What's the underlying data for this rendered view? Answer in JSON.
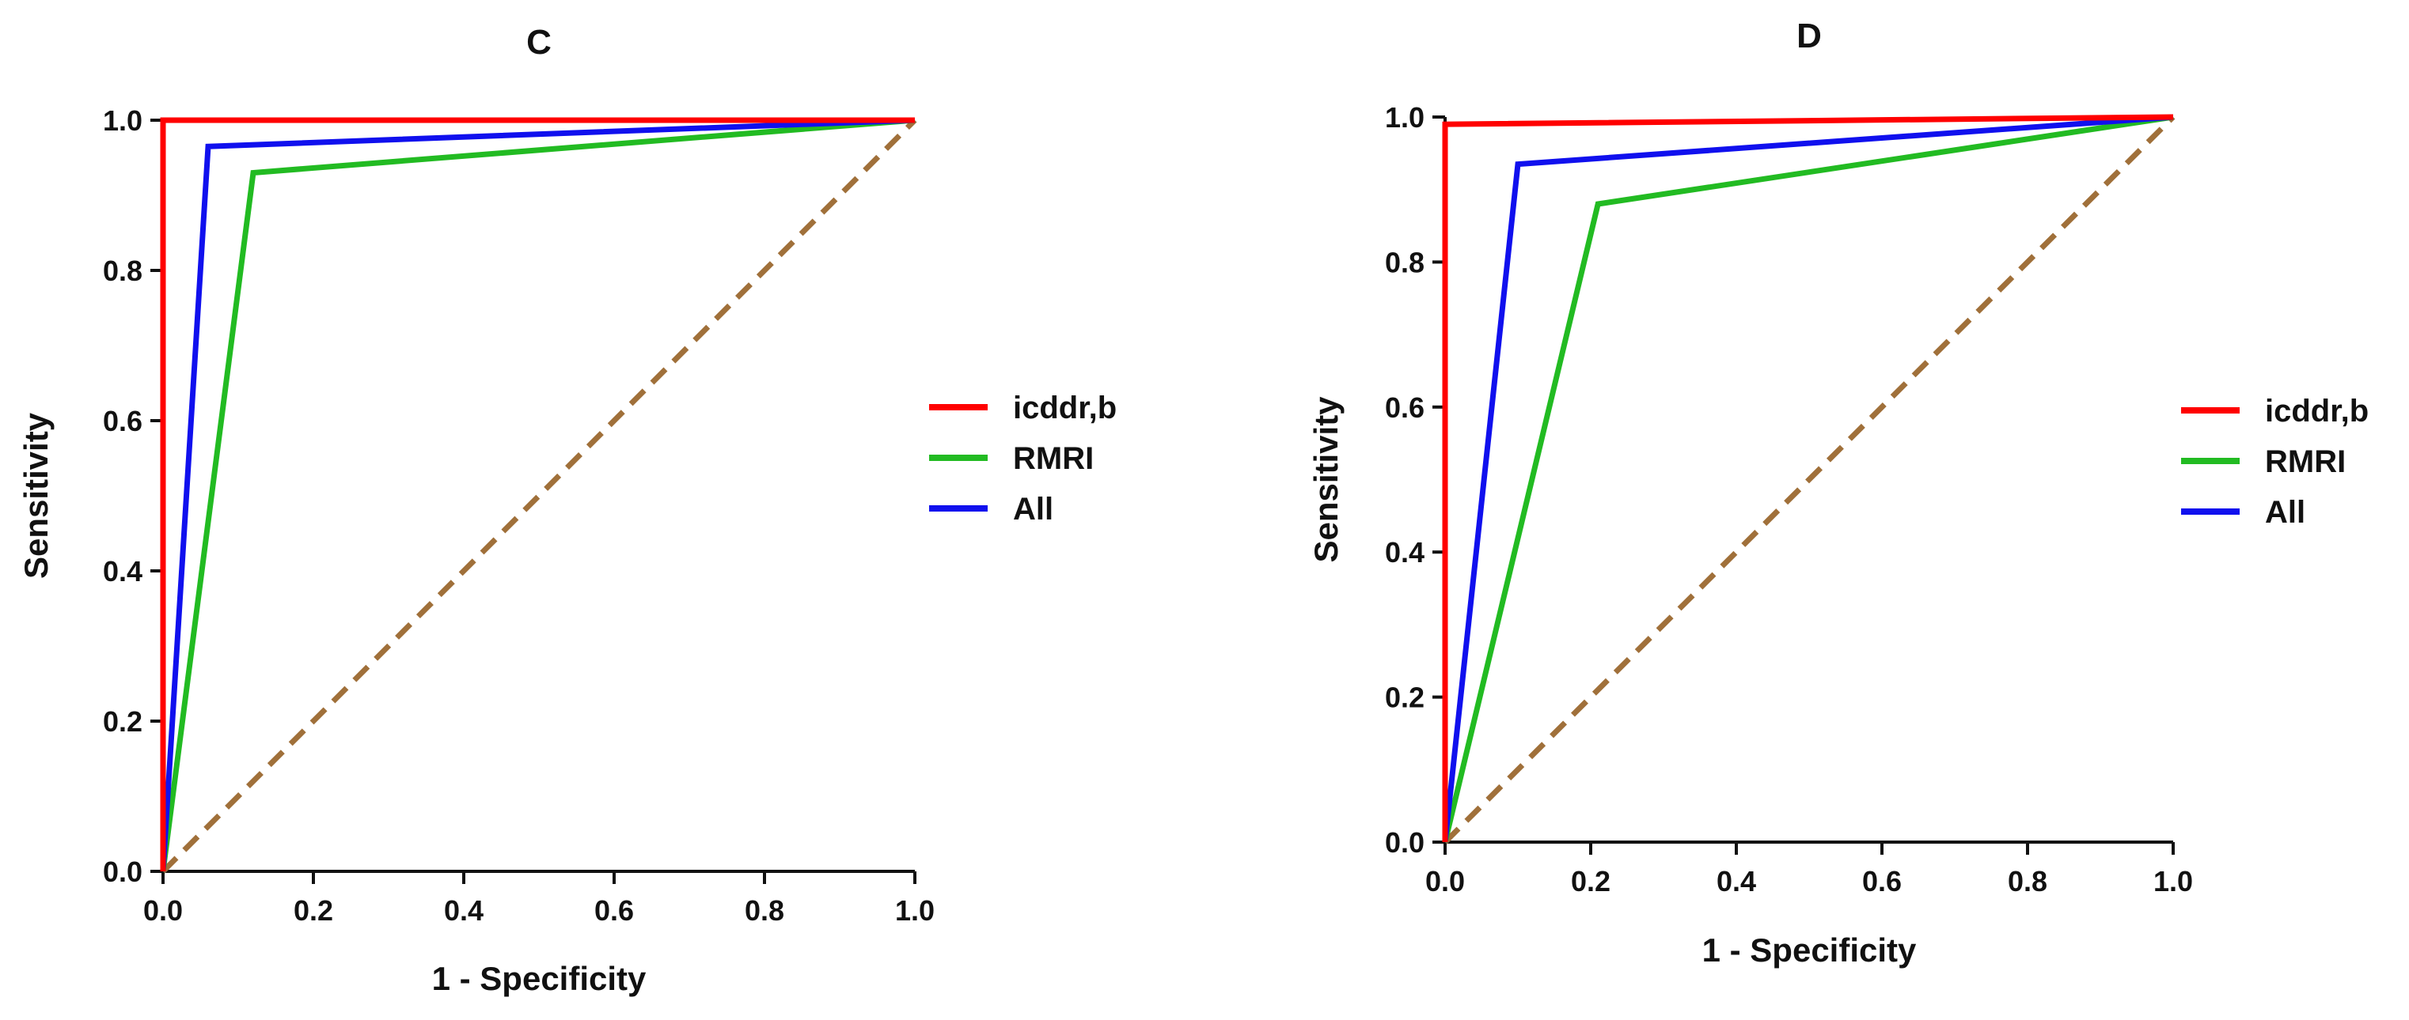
{
  "chart_data": [
    {
      "type": "line",
      "title": "C",
      "xlabel": "1 - Specificity",
      "ylabel": "Sensitivity",
      "xlim": [
        0,
        1
      ],
      "ylim": [
        0,
        1
      ],
      "xticks": [
        "0.0",
        "0.2",
        "0.4",
        "0.6",
        "0.8",
        "1.0"
      ],
      "yticks": [
        "0.0",
        "0.2",
        "0.4",
        "0.6",
        "0.8",
        "1.0"
      ],
      "legend": "right",
      "series": [
        {
          "name": "icddr,b",
          "color": "#ff0000",
          "x": [
            0,
            0,
            1
          ],
          "y": [
            0,
            1,
            1
          ]
        },
        {
          "name": "RMRI",
          "color": "#22bb22",
          "x": [
            0,
            0.12,
            1
          ],
          "y": [
            0,
            0.93,
            1
          ]
        },
        {
          "name": "All",
          "color": "#1010ee",
          "x": [
            0,
            0.06,
            1
          ],
          "y": [
            0,
            0.965,
            1
          ]
        }
      ],
      "reference_line": {
        "style": "dashed",
        "color": "#a0703a",
        "x": [
          0,
          1
        ],
        "y": [
          0,
          1
        ]
      }
    },
    {
      "type": "line",
      "title": "D",
      "xlabel": "1 - Specificity",
      "ylabel": "Sensitivity",
      "xlim": [
        0,
        1
      ],
      "ylim": [
        0,
        1
      ],
      "xticks": [
        "0.0",
        "0.2",
        "0.4",
        "0.6",
        "0.8",
        "1.0"
      ],
      "yticks": [
        "0.0",
        "0.2",
        "0.4",
        "0.6",
        "0.8",
        "1.0"
      ],
      "legend": "right",
      "series": [
        {
          "name": "icddr,b",
          "color": "#ff0000",
          "x": [
            0,
            0,
            1
          ],
          "y": [
            0,
            0.99,
            1
          ]
        },
        {
          "name": "RMRI",
          "color": "#22bb22",
          "x": [
            0,
            0.21,
            1
          ],
          "y": [
            0,
            0.88,
            1
          ]
        },
        {
          "name": "All",
          "color": "#1010ee",
          "x": [
            0,
            0.1,
            1
          ],
          "y": [
            0,
            0.935,
            1
          ]
        }
      ],
      "reference_line": {
        "style": "dashed",
        "color": "#a0703a",
        "x": [
          0,
          1
        ],
        "y": [
          0,
          1
        ]
      }
    }
  ]
}
